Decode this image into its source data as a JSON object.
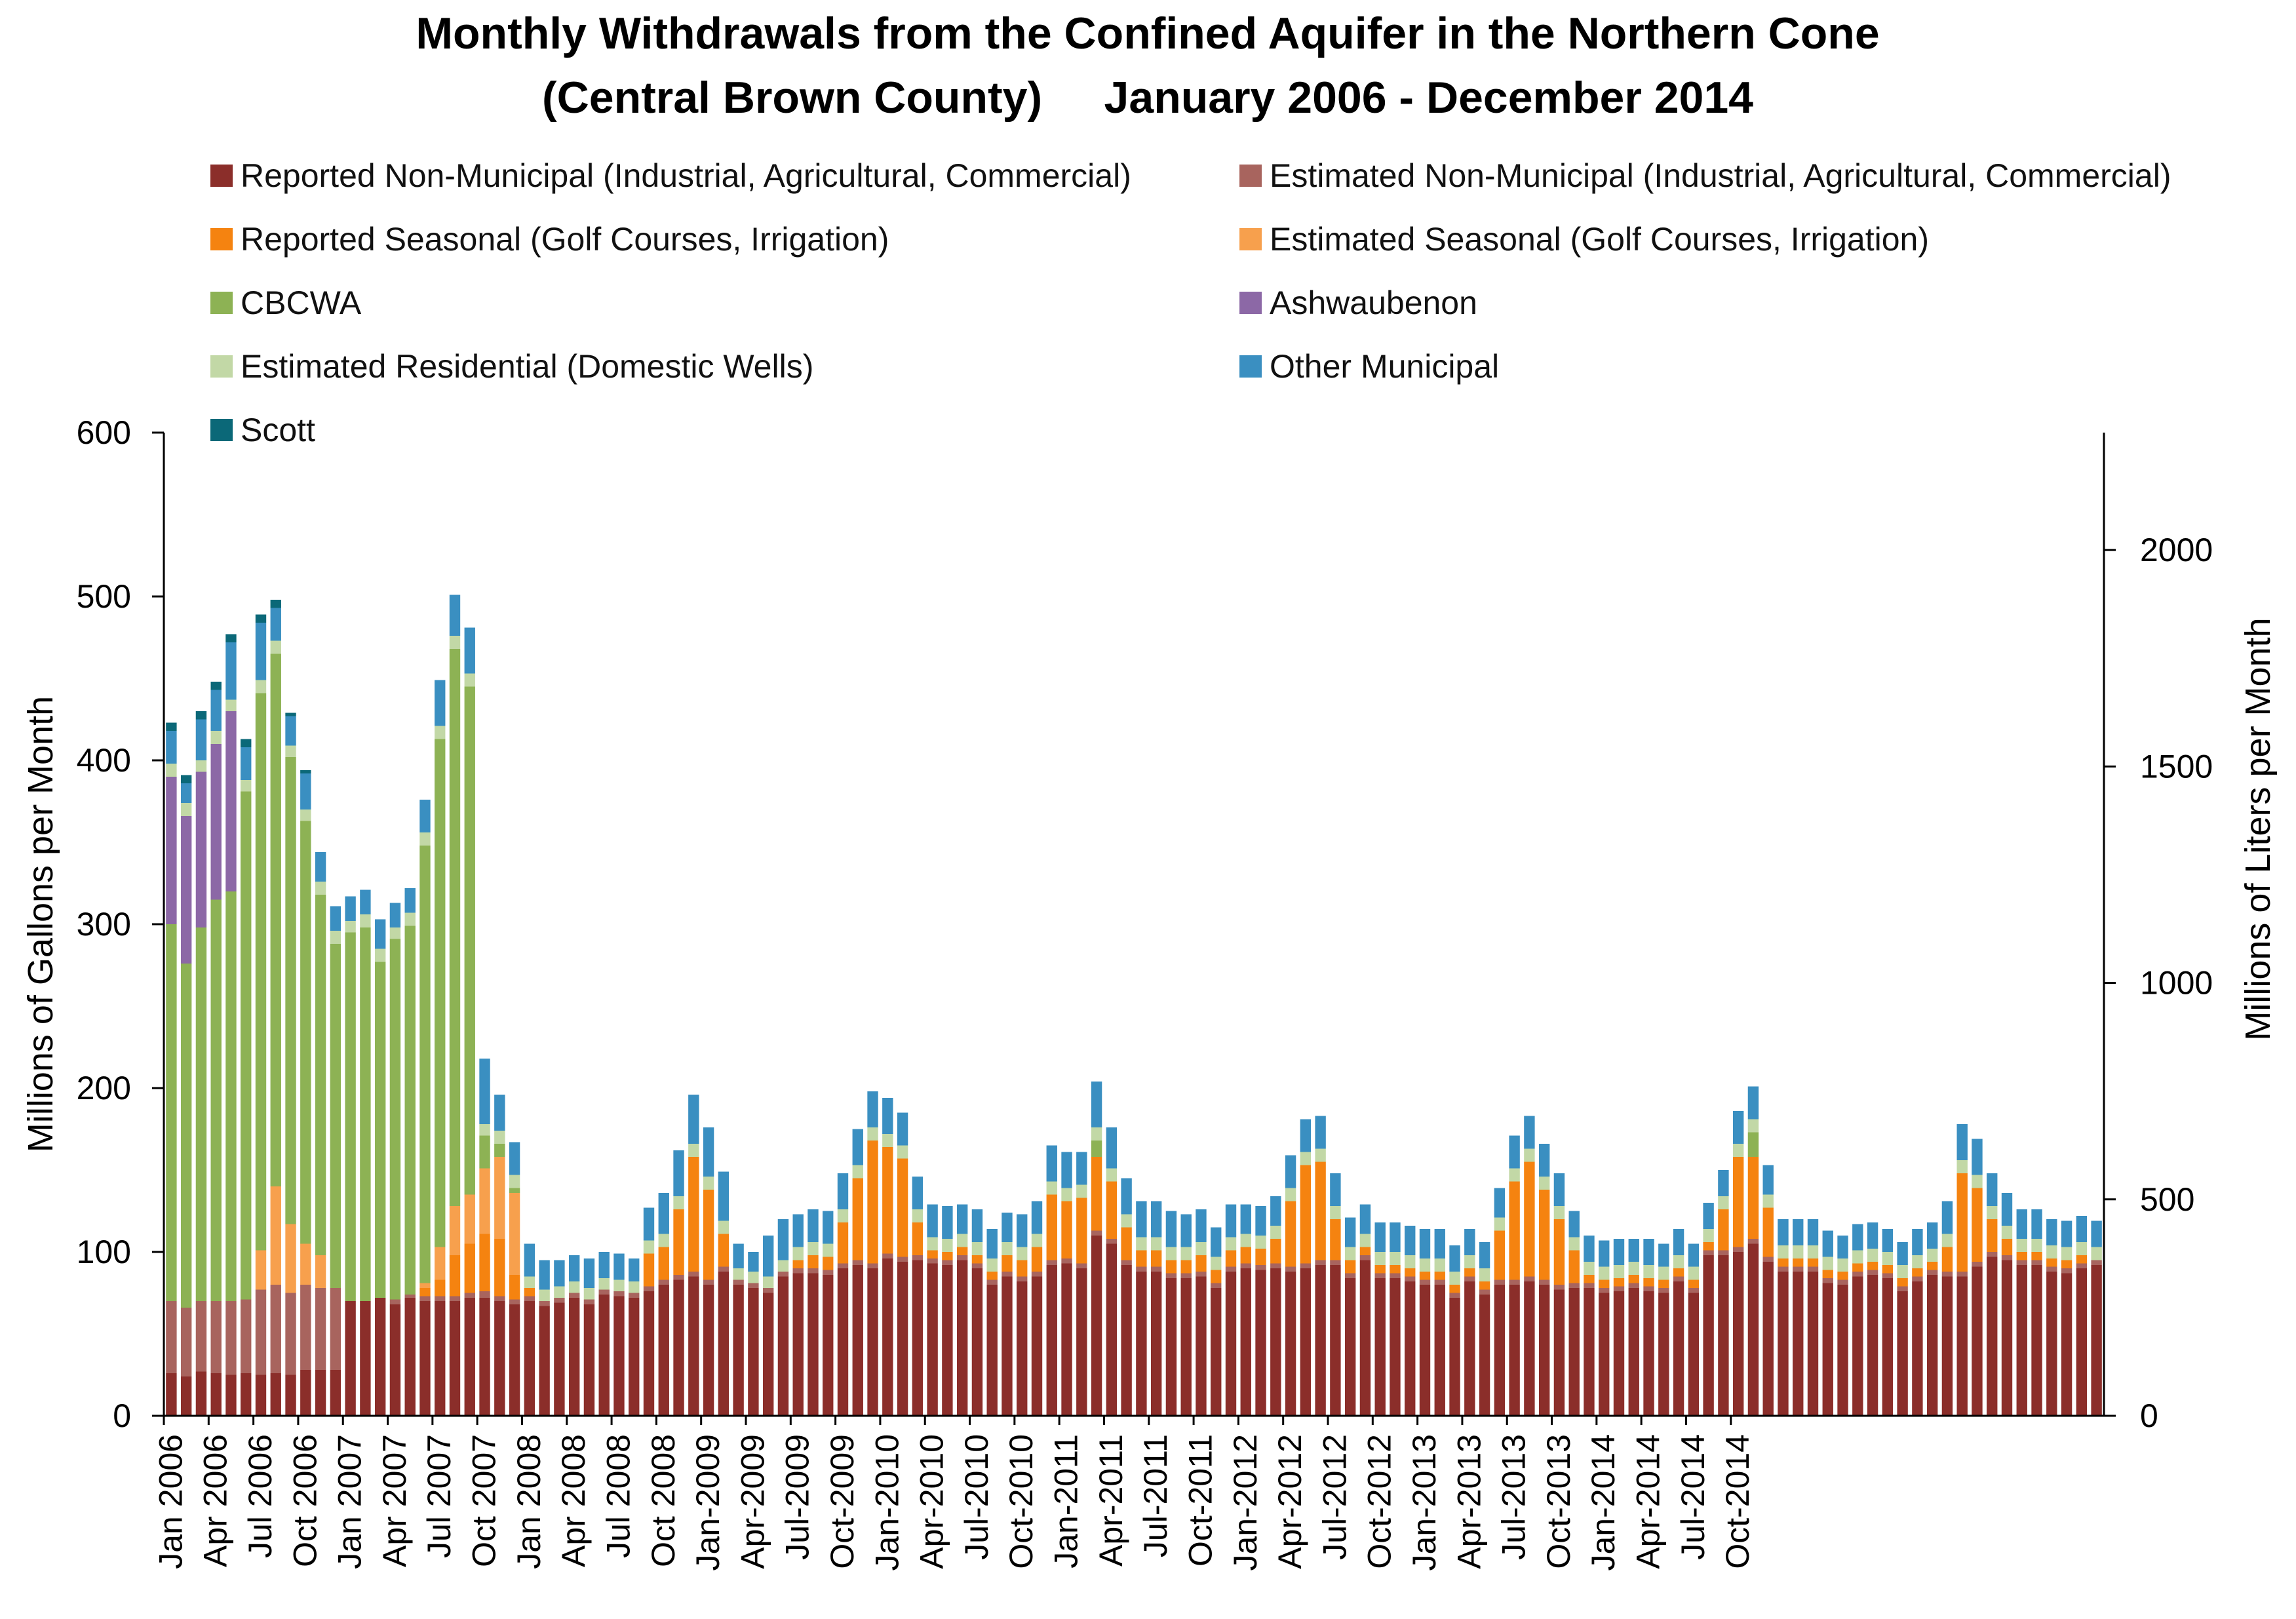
{
  "chart_data": {
    "type": "bar",
    "stacked": true,
    "title": "Monthly Withdrawals from the Confined Aquifer in the Northern Cone",
    "subtitle": "(Central Brown County)     January 2006 - December 2014",
    "ylabel": "Millions of Gallons per Month",
    "y2label": "Millions of Liters per Month",
    "ylim": [
      0,
      600
    ],
    "yticks": [
      0,
      100,
      200,
      300,
      400,
      500,
      600
    ],
    "y2lim": [
      0,
      2271.2
    ],
    "y2ticks": [
      0,
      500,
      1000,
      1500,
      2000
    ],
    "x_tick_labels": [
      "Jan 2006",
      "Apr 2006",
      "Jul 2006",
      "Oct 2006",
      "Jan 2007",
      "Apr 2007",
      "Jul 2007",
      "Oct 2007",
      "Jan 2008",
      "Apr 2008",
      "Jul 2008",
      "Oct 2008",
      "Jan-2009",
      "Apr-2009",
      "Jul-2009",
      "Oct-2009",
      "Jan-2010",
      "Apr-2010",
      "Jul-2010",
      "Oct-2010",
      "Jan-2011",
      "Apr-2011",
      "Jul-2011",
      "Oct-2011",
      "Jan-2012",
      "Apr-2012",
      "Jul-2012",
      "Oct-2012",
      "Jan-2013",
      "Apr-2013",
      "Jul-2013",
      "Oct-2013",
      "Jan-2014",
      "Apr-2014",
      "Jul-2014",
      "Oct-2014"
    ],
    "legend_position": "top",
    "series": [
      {
        "name": "Reported Non-Municipal (Industrial, Agricultural, Commercial)",
        "color": "#8B2E2A",
        "values": [
          26,
          24,
          27,
          26,
          25,
          26,
          25,
          26,
          25,
          28,
          28,
          28,
          70,
          70,
          72,
          68,
          72,
          70,
          70,
          70,
          72,
          72,
          70,
          68,
          70,
          67,
          69,
          72,
          68,
          74,
          73,
          72,
          76,
          80,
          83,
          85,
          80,
          88,
          80,
          78,
          75,
          85,
          87,
          87,
          86,
          90,
          92,
          90,
          96,
          94,
          95,
          93,
          92,
          95,
          90,
          80,
          85,
          82,
          85,
          92,
          93,
          90,
          110,
          105,
          92,
          88,
          88,
          84,
          84,
          85,
          78,
          88,
          90,
          89,
          90,
          88,
          90,
          92,
          92,
          84,
          95,
          84,
          84,
          82,
          80,
          80,
          72,
          82,
          74,
          80,
          80,
          82,
          80,
          77,
          78,
          78,
          75,
          76,
          78,
          76,
          75,
          82,
          75,
          98,
          98,
          100,
          105,
          94,
          88,
          88,
          88,
          81,
          80,
          85,
          86,
          84,
          76,
          82,
          86,
          85,
          85,
          91,
          97,
          95,
          92,
          92,
          88,
          87,
          90,
          92
        ]
      },
      {
        "name": "Estimated Non-Municipal (Industrial, Agricultural, Commercial)",
        "color": "#A8645E",
        "values": [
          44,
          42,
          43,
          44,
          45,
          45,
          52,
          54,
          50,
          52,
          50,
          50,
          0,
          0,
          0,
          3,
          2,
          3,
          3,
          3,
          3,
          4,
          3,
          3,
          3,
          3,
          3,
          3,
          3,
          3,
          3,
          3,
          3,
          3,
          3,
          3,
          3,
          3,
          3,
          3,
          3,
          3,
          3,
          3,
          3,
          3,
          3,
          3,
          3,
          3,
          3,
          3,
          3,
          3,
          3,
          3,
          3,
          3,
          3,
          3,
          3,
          3,
          3,
          3,
          3,
          3,
          3,
          3,
          3,
          3,
          3,
          3,
          3,
          3,
          3,
          3,
          3,
          3,
          3,
          3,
          3,
          3,
          3,
          3,
          3,
          3,
          3,
          3,
          3,
          3,
          3,
          3,
          3,
          3,
          3,
          3,
          3,
          3,
          3,
          3,
          3,
          3,
          3,
          3,
          3,
          3,
          3,
          3,
          3,
          3,
          3,
          3,
          3,
          3,
          3,
          3,
          3,
          3,
          3,
          3,
          3,
          3,
          3,
          3,
          3,
          3,
          3,
          3,
          3,
          3
        ]
      },
      {
        "name": "Reported Seasonal (Golf Courses, Irrigation)",
        "color": "#F58310",
        "values": [
          0,
          0,
          0,
          0,
          0,
          0,
          0,
          0,
          0,
          0,
          0,
          0,
          0,
          0,
          0,
          0,
          0,
          5,
          10,
          25,
          30,
          35,
          35,
          15,
          5,
          0,
          0,
          0,
          0,
          0,
          0,
          0,
          20,
          20,
          40,
          70,
          55,
          20,
          0,
          0,
          0,
          0,
          5,
          8,
          8,
          25,
          50,
          75,
          65,
          60,
          20,
          5,
          5,
          5,
          5,
          5,
          10,
          10,
          15,
          40,
          35,
          40,
          45,
          35,
          20,
          10,
          10,
          8,
          8,
          10,
          8,
          10,
          10,
          10,
          15,
          40,
          60,
          60,
          25,
          8,
          5,
          5,
          5,
          5,
          5,
          5,
          5,
          5,
          5,
          30,
          60,
          70,
          55,
          40,
          20,
          5,
          5,
          5,
          5,
          5,
          5,
          5,
          5,
          5,
          25,
          55,
          50,
          30,
          5,
          5,
          5,
          5,
          5,
          5,
          5,
          5,
          5,
          5,
          5,
          15,
          60,
          45,
          20,
          10,
          5,
          5,
          5,
          5,
          5
        ]
      },
      {
        "name": "Estimated Seasonal (Golf Courses, Irrigation)",
        "color": "#F7A04D",
        "values": [
          0,
          0,
          0,
          0,
          0,
          0,
          24,
          60,
          42,
          25,
          20,
          0,
          0,
          0,
          0,
          0,
          0,
          3,
          20,
          30,
          30,
          40,
          50,
          50,
          0,
          0,
          0,
          0,
          0,
          0,
          0,
          0,
          0,
          0,
          0,
          0,
          0,
          0,
          0,
          0,
          0,
          0,
          0,
          0,
          0,
          0,
          0,
          0,
          0,
          0,
          0,
          0,
          0,
          0,
          0,
          0,
          0,
          0,
          0,
          0,
          0,
          0,
          0,
          0,
          0,
          0,
          0,
          0,
          0,
          0,
          0,
          0,
          0,
          0,
          0,
          0,
          0,
          0,
          0,
          0,
          0,
          0,
          0,
          0,
          0,
          0,
          0,
          0,
          0,
          0,
          0,
          0,
          0,
          0,
          0,
          0,
          0,
          0,
          0,
          0,
          0,
          0,
          0,
          0,
          0,
          0,
          0,
          0,
          0,
          0,
          0,
          0,
          0,
          0,
          0,
          0,
          0,
          0,
          0,
          0,
          0,
          0,
          0,
          0,
          0,
          0,
          0,
          0,
          0,
          0
        ]
      },
      {
        "name": "CBCWA",
        "color": "#8DB254",
        "values": [
          230,
          210,
          228,
          245,
          250,
          310,
          340,
          325,
          285,
          258,
          220,
          210,
          225,
          228,
          205,
          220,
          225,
          267,
          310,
          340,
          310,
          20,
          8,
          3,
          0,
          0,
          0,
          0,
          0,
          0,
          0,
          0,
          0,
          0,
          0,
          0,
          0,
          0,
          0,
          0,
          0,
          0,
          0,
          0,
          0,
          0,
          0,
          0,
          0,
          0,
          0,
          0,
          0,
          0,
          0,
          0,
          0,
          0,
          0,
          0,
          0,
          0,
          10,
          0,
          0,
          0,
          0,
          0,
          0,
          0,
          0,
          0,
          0,
          0,
          0,
          0,
          0,
          0,
          0,
          0,
          0,
          0,
          0,
          0,
          0,
          0,
          0,
          0,
          0,
          0,
          0,
          0,
          0,
          0,
          0,
          0,
          0,
          0,
          0,
          0,
          0,
          0,
          0,
          0,
          0,
          0,
          15,
          0,
          0,
          0,
          0,
          0,
          0,
          0,
          0,
          0,
          0,
          0,
          0,
          0,
          0,
          0,
          0,
          0,
          0,
          0,
          0,
          0,
          0,
          0
        ]
      },
      {
        "name": "Ashwaubenon",
        "color": "#8C68A6",
        "values": [
          90,
          90,
          95,
          95,
          110,
          0,
          0,
          0,
          0,
          0,
          0,
          0,
          0,
          0,
          0,
          0,
          0,
          0,
          0,
          0,
          0,
          0,
          0,
          0,
          0,
          0,
          0,
          0,
          0,
          0,
          0,
          0,
          0,
          0,
          0,
          0,
          0,
          0,
          0,
          0,
          0,
          0,
          0,
          0,
          0,
          0,
          0,
          0,
          0,
          0,
          0,
          0,
          0,
          0,
          0,
          0,
          0,
          0,
          0,
          0,
          0,
          0,
          0,
          0,
          0,
          0,
          0,
          0,
          0,
          0,
          0,
          0,
          0,
          0,
          0,
          0,
          0,
          0,
          0,
          0,
          0,
          0,
          0,
          0,
          0,
          0,
          0,
          0,
          0,
          0,
          0,
          0,
          0,
          0,
          0,
          0,
          0,
          0,
          0,
          0,
          0,
          0,
          0,
          0,
          0,
          0,
          0,
          0,
          0,
          0,
          0,
          0,
          0,
          0,
          0,
          0,
          0,
          0,
          0,
          0,
          0,
          0,
          0,
          0,
          0,
          0,
          0,
          0,
          0,
          0
        ]
      },
      {
        "name": "Estimated Residential (Domestic Wells)",
        "color": "#C2D8A6",
        "values": [
          8,
          8,
          7,
          8,
          7,
          7,
          8,
          8,
          7,
          7,
          8,
          8,
          7,
          8,
          8,
          7,
          8,
          8,
          8,
          8,
          8,
          7,
          8,
          8,
          7,
          7,
          7,
          7,
          7,
          7,
          7,
          7,
          8,
          8,
          8,
          8,
          8,
          8,
          7,
          7,
          7,
          7,
          8,
          8,
          8,
          8,
          8,
          8,
          8,
          8,
          8,
          8,
          8,
          8,
          8,
          8,
          8,
          8,
          8,
          8,
          8,
          8,
          8,
          8,
          8,
          8,
          8,
          8,
          8,
          8,
          8,
          8,
          8,
          8,
          8,
          8,
          8,
          8,
          8,
          8,
          8,
          8,
          8,
          8,
          8,
          8,
          8,
          8,
          8,
          8,
          8,
          8,
          8,
          8,
          8,
          8,
          8,
          8,
          8,
          8,
          8,
          8,
          8,
          8,
          8,
          8,
          8,
          8,
          8,
          8,
          8,
          8,
          8,
          8,
          8,
          8,
          8,
          8,
          8,
          8,
          8,
          8,
          8,
          8,
          8,
          8,
          8,
          8,
          8,
          8
        ]
      },
      {
        "name": "Other Municipal",
        "color": "#3A8FC1",
        "values": [
          20,
          12,
          25,
          25,
          35,
          20,
          35,
          20,
          18,
          22,
          18,
          15,
          15,
          15,
          18,
          15,
          15,
          20,
          28,
          25,
          28,
          40,
          22,
          20,
          20,
          18,
          16,
          16,
          18,
          16,
          16,
          14,
          20,
          25,
          28,
          30,
          30,
          30,
          15,
          12,
          25,
          25,
          20,
          20,
          20,
          22,
          22,
          22,
          22,
          20,
          20,
          20,
          20,
          18,
          20,
          18,
          18,
          20,
          20,
          22,
          22,
          20,
          28,
          25,
          22,
          22,
          22,
          22,
          20,
          20,
          18,
          20,
          18,
          18,
          18,
          20,
          20,
          20,
          20,
          18,
          18,
          18,
          18,
          18,
          18,
          18,
          16,
          16,
          16,
          18,
          20,
          20,
          20,
          20,
          16,
          16,
          16,
          16,
          14,
          16,
          14,
          16,
          14,
          16,
          16,
          20,
          20,
          18,
          16,
          16,
          16,
          16,
          14,
          16,
          16,
          14,
          14,
          16,
          16,
          20,
          22,
          22,
          20,
          20,
          18,
          18,
          16,
          16,
          16,
          16
        ]
      },
      {
        "name": "Scott",
        "color": "#0B6878",
        "values": [
          5,
          5,
          5,
          5,
          5,
          5,
          5,
          5,
          2,
          2,
          0,
          0,
          0,
          0,
          0,
          0,
          0,
          0,
          0,
          0,
          0,
          0,
          0,
          0,
          0,
          0,
          0,
          0,
          0,
          0,
          0,
          0,
          0,
          0,
          0,
          0,
          0,
          0,
          0,
          0,
          0,
          0,
          0,
          0,
          0,
          0,
          0,
          0,
          0,
          0,
          0,
          0,
          0,
          0,
          0,
          0,
          0,
          0,
          0,
          0,
          0,
          0,
          0,
          0,
          0,
          0,
          0,
          0,
          0,
          0,
          0,
          0,
          0,
          0,
          0,
          0,
          0,
          0,
          0,
          0,
          0,
          0,
          0,
          0,
          0,
          0,
          0,
          0,
          0,
          0,
          0,
          0,
          0,
          0,
          0,
          0,
          0,
          0,
          0,
          0,
          0,
          0,
          0,
          0,
          0,
          0,
          0,
          0,
          0,
          0,
          0,
          0,
          0,
          0,
          0,
          0,
          0,
          0,
          0,
          0,
          0,
          0,
          0,
          0,
          0,
          0,
          0,
          0,
          0,
          0
        ]
      }
    ]
  }
}
